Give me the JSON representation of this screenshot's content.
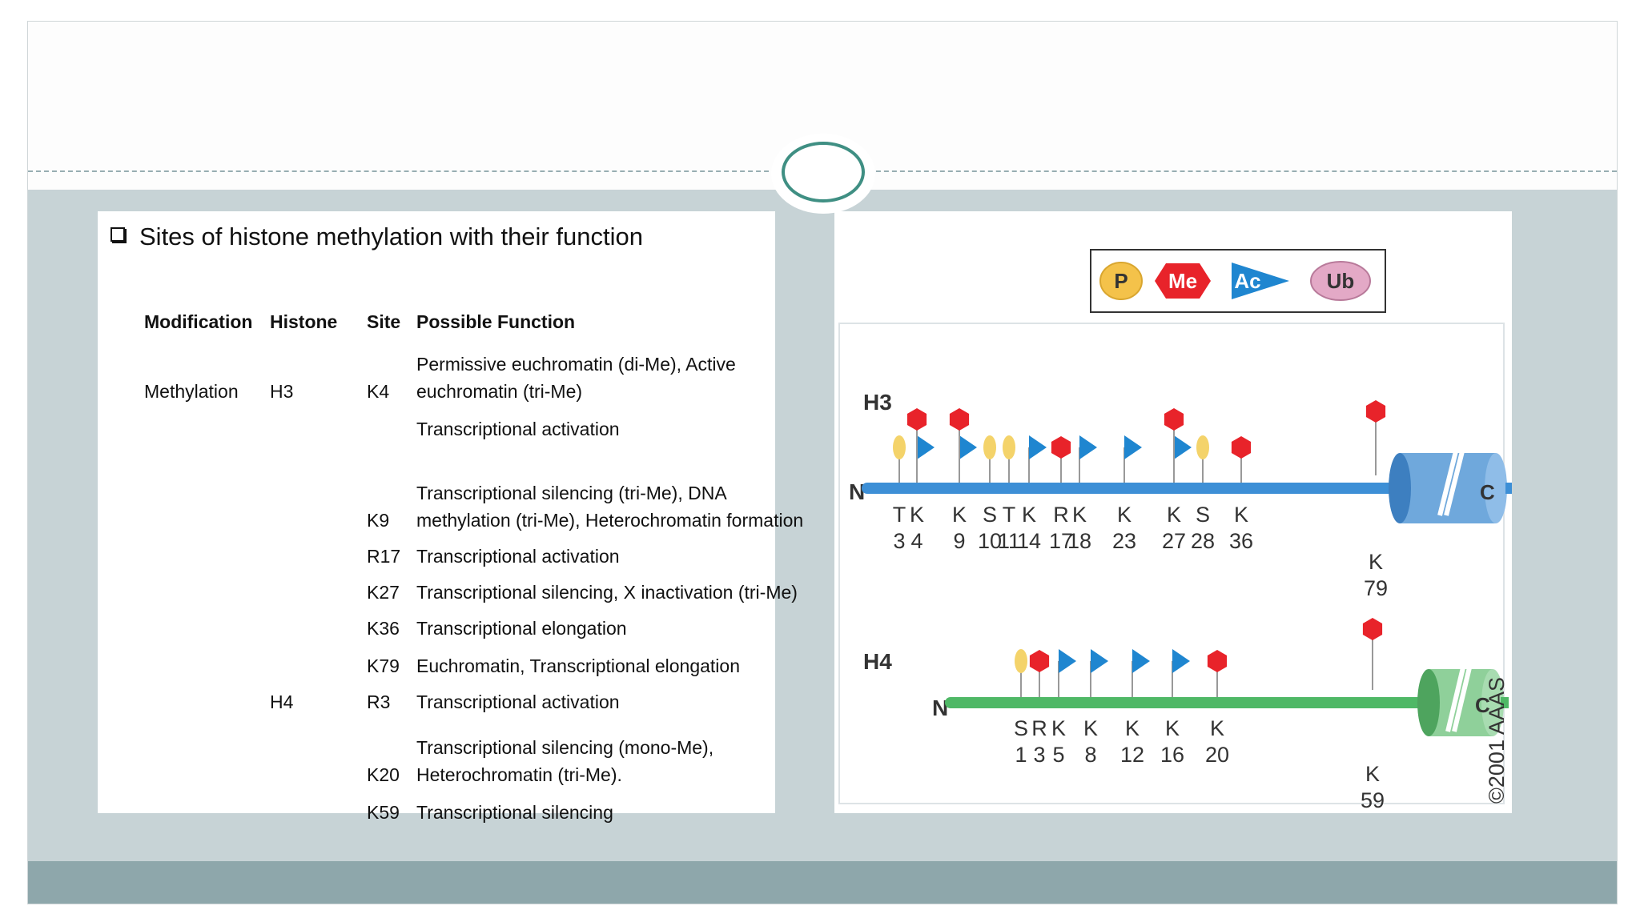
{
  "table": {
    "heading": "Sites of histone methylation with their function",
    "headers": {
      "modification": "Modification",
      "histone": "Histone",
      "site": "Site",
      "function": "Possible Function"
    },
    "rows": [
      {
        "modification": "Methylation",
        "histone": "H3",
        "site": "K4",
        "function": [
          "Permissive euchromatin (di-Me), Active",
          "euchromatin (tri-Me)"
        ]
      },
      {
        "modification": "",
        "histone": "",
        "site": "",
        "function": [
          "Transcriptional activation"
        ]
      },
      {
        "modification": "",
        "histone": "",
        "site": "K9",
        "function": [
          "Transcriptional silencing (tri-Me), DNA",
          "methylation (tri-Me), Heterochromatin formation"
        ]
      },
      {
        "modification": "",
        "histone": "",
        "site": "R17",
        "function": [
          "Transcriptional activation"
        ]
      },
      {
        "modification": "",
        "histone": "",
        "site": "K27",
        "function": [
          "Transcriptional silencing, X inactivation (tri-Me)"
        ]
      },
      {
        "modification": "",
        "histone": "",
        "site": "K36",
        "function": [
          "Transcriptional elongation"
        ]
      },
      {
        "modification": "",
        "histone": "",
        "site": "K79",
        "function": [
          "Euchromatin, Transcriptional elongation"
        ]
      },
      {
        "modification": "",
        "histone": "H4",
        "site": "R3",
        "function": [
          "Transcriptional activation"
        ]
      },
      {
        "modification": "",
        "histone": "",
        "site": "K20",
        "function": [
          "Transcriptional silencing (mono-Me),",
          "Heterochromatin (tri-Me)."
        ]
      },
      {
        "modification": "",
        "histone": "",
        "site": "K59",
        "function": [
          "Transcriptional silencing"
        ]
      }
    ]
  },
  "diagram": {
    "legend": [
      {
        "label": "P",
        "shape": "oval",
        "color": "#f4c24a"
      },
      {
        "label": "Me",
        "shape": "hexagon",
        "color": "#e8232a"
      },
      {
        "label": "Ac",
        "shape": "flag",
        "color": "#1f86d0"
      },
      {
        "label": "Ub",
        "shape": "oval",
        "color": "#e3a9c6"
      }
    ],
    "colors": {
      "h3_tail": "#3d8fd6",
      "h4_tail": "#4fb866",
      "methyl": "#e8232a",
      "phospho": "#f4d36a",
      "acetyl": "#1f86d0"
    },
    "h3": {
      "label": "H3",
      "n_label": "N",
      "c_label": "C",
      "sites": [
        {
          "res": "T",
          "num": "3",
          "marks": [
            "P"
          ]
        },
        {
          "res": "K",
          "num": "4",
          "marks": [
            "Ac",
            "Me"
          ]
        },
        {
          "res": "K",
          "num": "9",
          "marks": [
            "Ac",
            "Me"
          ]
        },
        {
          "res": "S",
          "num": "10",
          "marks": [
            "P"
          ]
        },
        {
          "res": "T",
          "num": "11",
          "marks": [
            "P"
          ]
        },
        {
          "res": "K",
          "num": "14",
          "marks": [
            "Ac"
          ]
        },
        {
          "res": "R",
          "num": "17",
          "marks": [
            "Me"
          ]
        },
        {
          "res": "K",
          "num": "18",
          "marks": [
            "Ac"
          ]
        },
        {
          "res": "K",
          "num": "23",
          "marks": [
            "Ac"
          ]
        },
        {
          "res": "K",
          "num": "27",
          "marks": [
            "Ac",
            "Me"
          ]
        },
        {
          "res": "S",
          "num": "28",
          "marks": [
            "P"
          ]
        },
        {
          "res": "K",
          "num": "36",
          "marks": [
            "Me"
          ]
        }
      ],
      "core_site": {
        "res": "K",
        "num": "79",
        "marks": [
          "Me"
        ]
      }
    },
    "h4": {
      "label": "H4",
      "n_label": "N",
      "c_label": "C",
      "sites": [
        {
          "res": "S",
          "num": "1",
          "marks": [
            "P"
          ]
        },
        {
          "res": "R",
          "num": "3",
          "marks": [
            "Me"
          ]
        },
        {
          "res": "K",
          "num": "5",
          "marks": [
            "Ac"
          ]
        },
        {
          "res": "K",
          "num": "8",
          "marks": [
            "Ac"
          ]
        },
        {
          "res": "K",
          "num": "12",
          "marks": [
            "Ac"
          ]
        },
        {
          "res": "K",
          "num": "16",
          "marks": [
            "Ac"
          ]
        },
        {
          "res": "K",
          "num": "20",
          "marks": [
            "Me"
          ]
        }
      ],
      "core_site": {
        "res": "K",
        "num": "59",
        "marks": [
          "Me"
        ]
      }
    },
    "copyright": "©2001 AAAS"
  }
}
